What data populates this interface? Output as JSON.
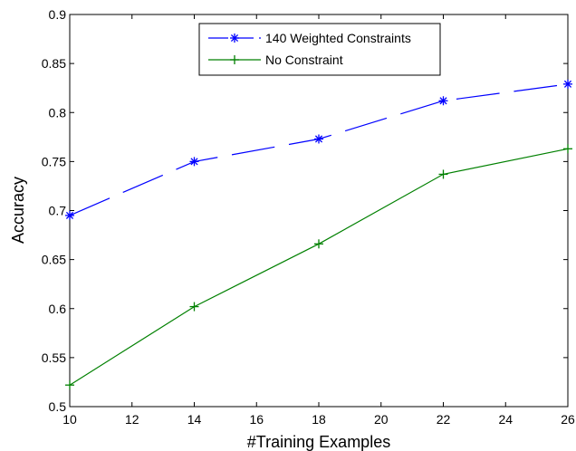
{
  "chart_data": {
    "type": "line",
    "title": "",
    "xlabel": "#Training Examples",
    "ylabel": "Accuracy",
    "xlim": [
      10,
      26
    ],
    "ylim": [
      0.5,
      0.9
    ],
    "xticks": [
      10,
      12,
      14,
      16,
      18,
      20,
      22,
      24,
      26
    ],
    "yticks": [
      0.5,
      0.55,
      0.6,
      0.65,
      0.7,
      0.75,
      0.8,
      0.85,
      0.9
    ],
    "xtick_labels": [
      "10",
      "12",
      "14",
      "16",
      "18",
      "20",
      "22",
      "24",
      "26"
    ],
    "ytick_labels": [
      "0.5",
      "0.55",
      "0.6",
      "0.65",
      "0.7",
      "0.75",
      "0.8",
      "0.85",
      "0.9"
    ],
    "grid": false,
    "legend_position": "top-center",
    "series": [
      {
        "name": "140 Weighted Constraints",
        "color": "#0000ff",
        "line_style": "dashed",
        "marker": "asterisk",
        "x": [
          10,
          14,
          18,
          22,
          26
        ],
        "y": [
          0.695,
          0.75,
          0.773,
          0.812,
          0.829
        ]
      },
      {
        "name": "No Constraint",
        "color": "#008000",
        "line_style": "solid",
        "marker": "plus",
        "x": [
          10,
          14,
          18,
          22,
          26
        ],
        "y": [
          0.522,
          0.602,
          0.666,
          0.737,
          0.763
        ]
      }
    ]
  }
}
